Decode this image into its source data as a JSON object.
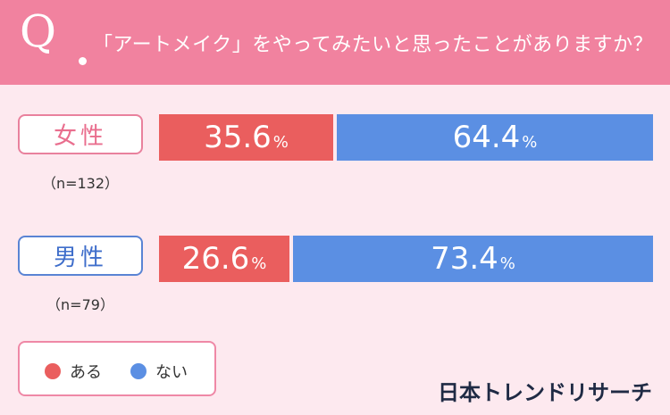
{
  "header": {
    "q_mark": "Q",
    "question": "「アートメイク」をやってみたいと思ったことがありますか？"
  },
  "colors": {
    "header_bg": "#f1829f",
    "page_bg": "#fde9ef",
    "yes": "#ea5e5e",
    "no": "#5b8fe3",
    "female_border": "#e9819d",
    "male_border": "#5a84d4",
    "female_text": "#e96e8e",
    "male_text": "#3f6ecb"
  },
  "chart_data": {
    "type": "bar",
    "stacked": true,
    "orientation": "horizontal",
    "categories": [
      "女性",
      "男性"
    ],
    "sample_sizes": [
      "（n=132）",
      "（n=79）"
    ],
    "series": [
      {
        "name": "ある",
        "values": [
          35.6,
          26.6
        ]
      },
      {
        "name": "ない",
        "values": [
          64.4,
          73.4
        ]
      }
    ],
    "unit": "%",
    "legend_position": "bottom-left"
  },
  "brand": "日本トレンドリサーチ"
}
